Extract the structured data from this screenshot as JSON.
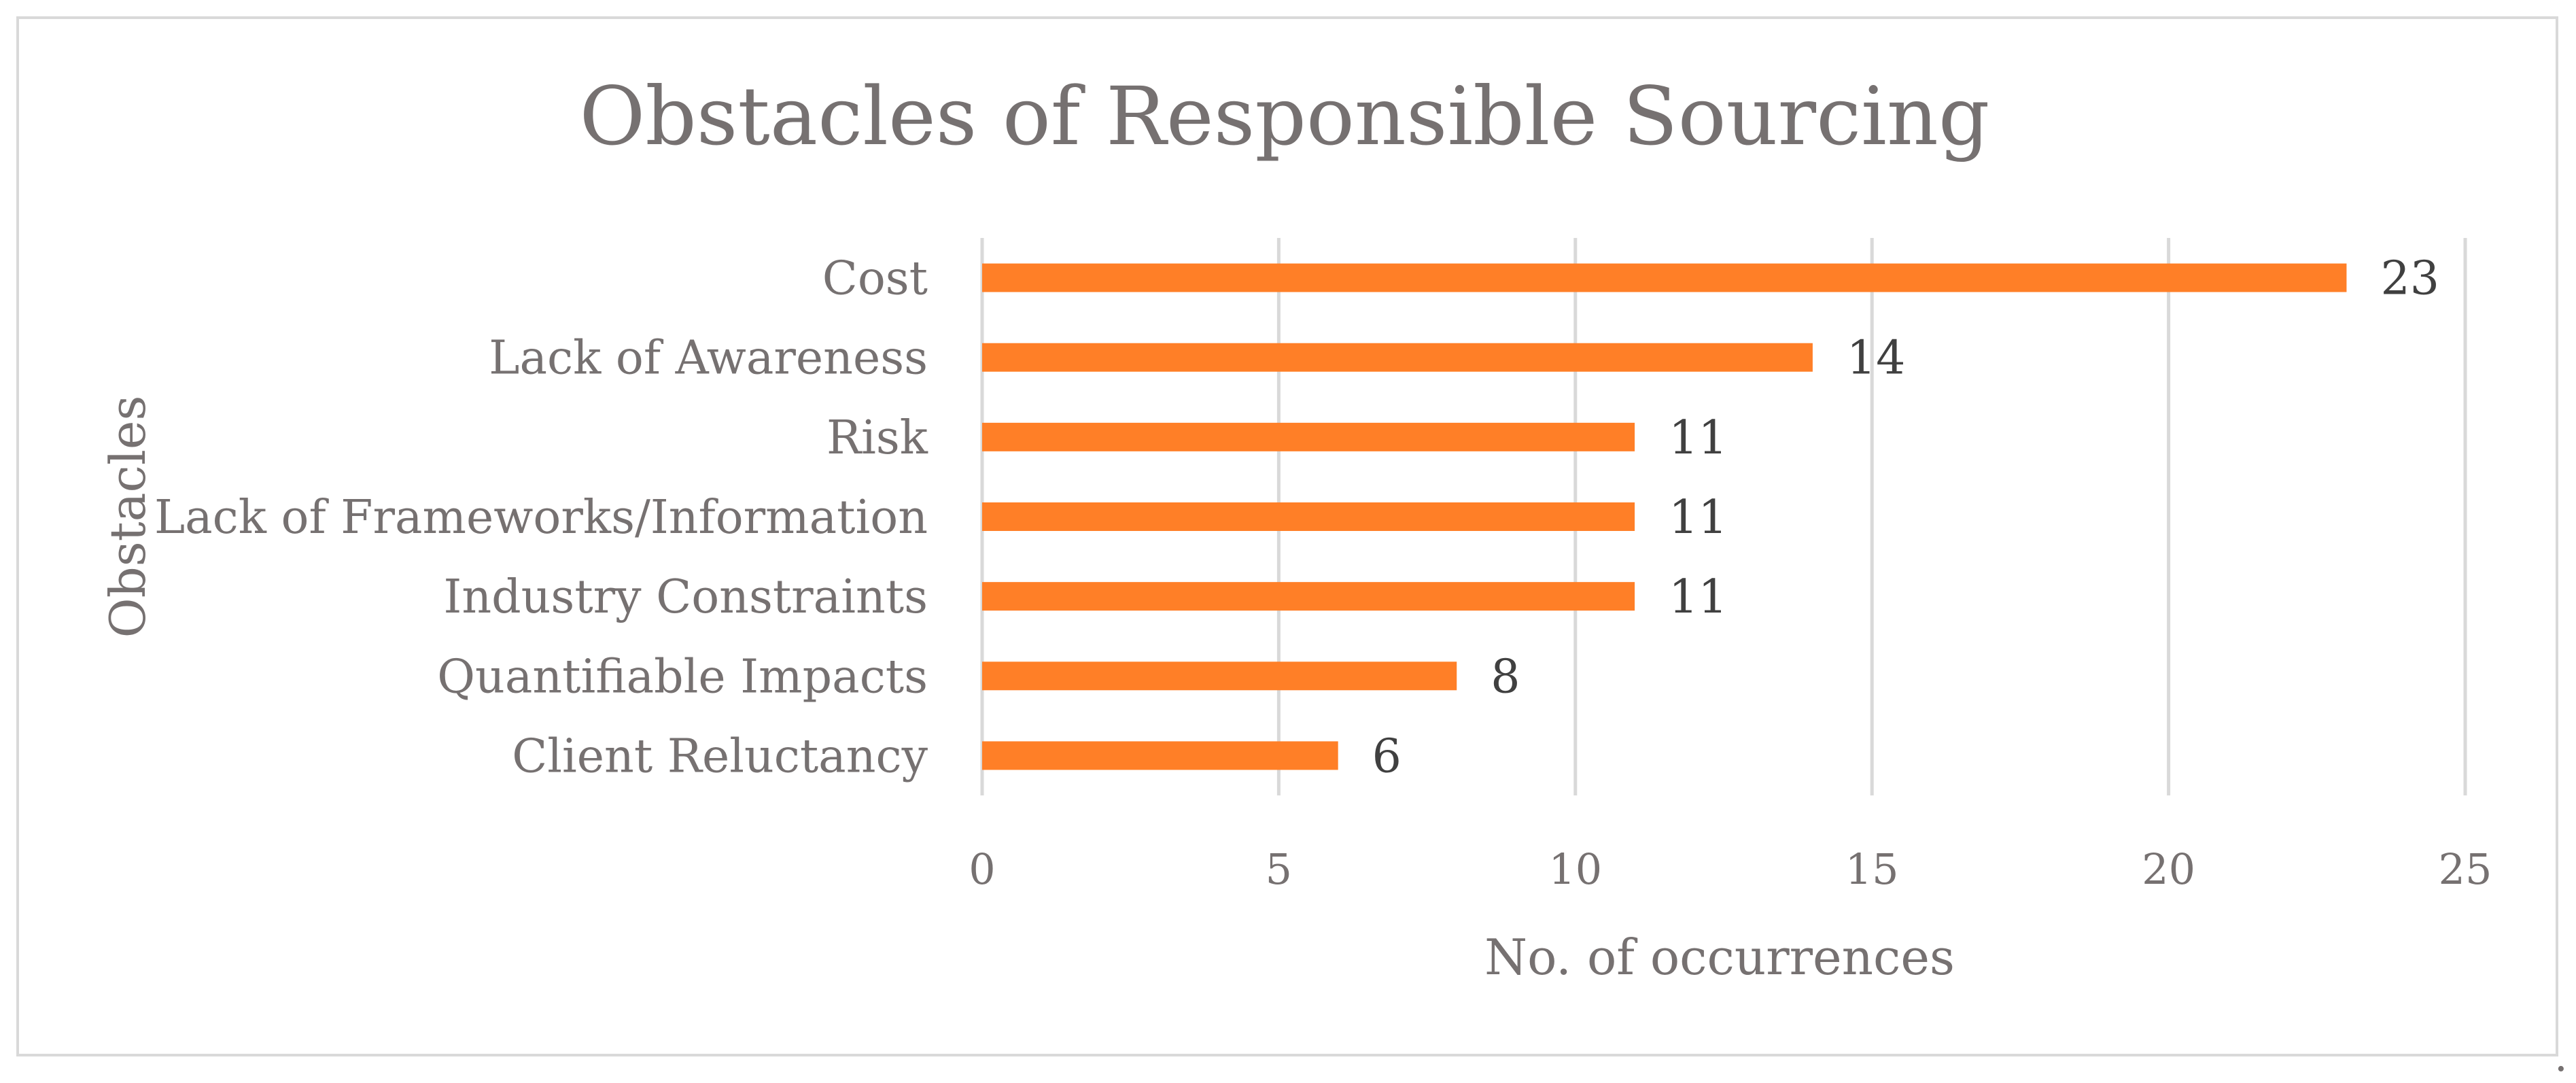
{
  "chart_data": {
    "type": "bar",
    "orientation": "horizontal",
    "title": "Obstacles of Responsible Sourcing",
    "xlabel": "No. of occurrences",
    "ylabel": "Obstacles",
    "categories": [
      "Cost",
      "Lack of Awareness",
      "Risk",
      "Lack of Frameworks/Information",
      "Industry Constraints",
      "Quantifiable Impacts",
      "Client Reluctancy"
    ],
    "values": [
      23,
      14,
      11,
      11,
      11,
      8,
      6
    ],
    "xlim": [
      0,
      25
    ],
    "xticks": [
      "0",
      "5",
      "10",
      "15",
      "20",
      "25"
    ],
    "grid": true,
    "data_labels": true,
    "bar_color": "#FF7F27",
    "text_color": "#767171"
  },
  "trailing_mark": "."
}
